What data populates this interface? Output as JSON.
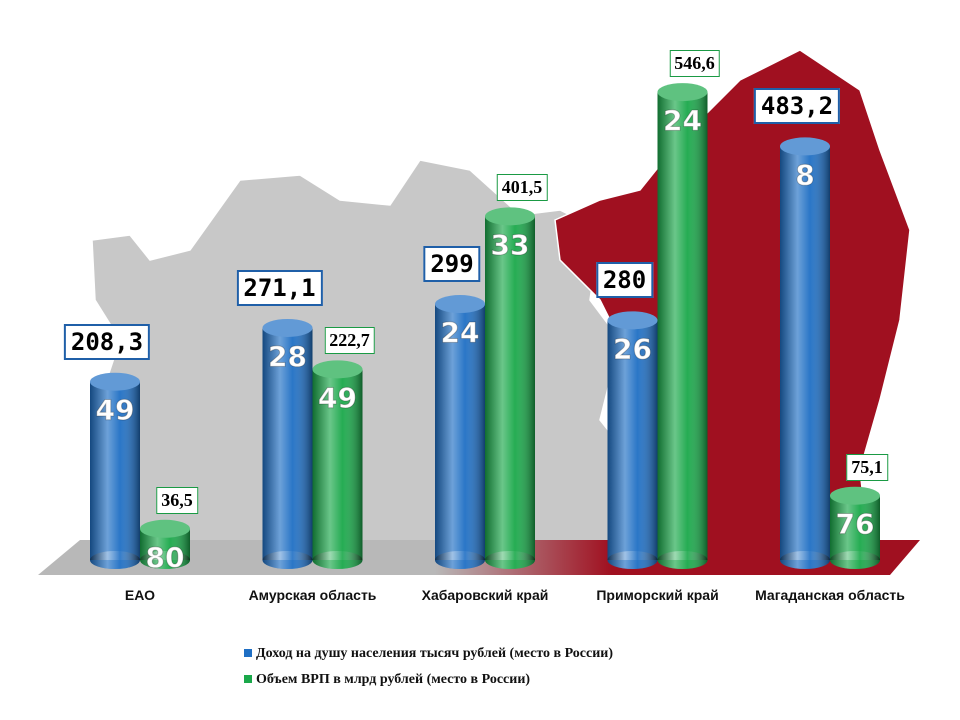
{
  "chart_data": {
    "type": "bar",
    "categories": [
      "ЕАО",
      "Амурская область",
      "Хабаровский край",
      "Приморский край",
      "Магаданская область"
    ],
    "series": [
      {
        "name": "Доход на душу населения тысяч рублей (место в России)",
        "color": "#1f6fc4",
        "values": [
          208.3,
          271.1,
          299,
          280,
          483.2
        ],
        "value_labels": [
          "208,3",
          "271,1",
          "299",
          "280",
          "483,2"
        ],
        "ranks": [
          49,
          28,
          24,
          26,
          8
        ]
      },
      {
        "name": "Объем ВРП в млрд рублей (место в России)",
        "color": "#1aa84a",
        "values": [
          36.5,
          222.7,
          401.5,
          546.6,
          75.1
        ],
        "value_labels": [
          "36,5",
          "222,7",
          "401,5",
          "546,6",
          "75,1"
        ],
        "ranks": [
          80,
          49,
          33,
          24,
          76
        ]
      }
    ]
  }
}
